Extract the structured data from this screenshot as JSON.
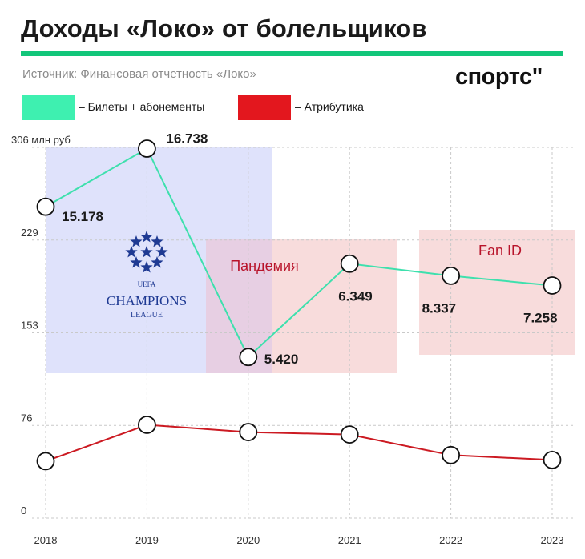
{
  "header": {
    "title": "Доходы «Локо» от болельщиков",
    "source": "Источник: Финансовая отчетность «Локо»",
    "logo": "спортс\""
  },
  "legend": [
    {
      "label": "– Билеты + абонементы",
      "color": "#3ef0b0"
    },
    {
      "label": "– Атрибутика",
      "color": "#e3171e"
    }
  ],
  "colors": {
    "accent_rule": "#12c67a",
    "ticket_line": "#3ee0ad",
    "merch_line": "#cc1a22",
    "ucl_zone": "#dfe2fb",
    "pink_zone": "#f7d6d6",
    "overlap_zone": "#e7cfe3"
  },
  "chart_data": {
    "type": "line",
    "categories": [
      "2018",
      "2019",
      "2020",
      "2021",
      "2022",
      "2023"
    ],
    "y_ticks": [
      "0",
      "76",
      "153",
      "229",
      "306 млн руб"
    ],
    "ylim": [
      0,
      306
    ],
    "series": [
      {
        "name": "Билеты + абонементы",
        "values": [
          257,
          305,
          133,
          210,
          200,
          192
        ],
        "labels": [
          "15.178",
          "16.738",
          "5.420",
          "6.349",
          "8.337",
          "7.258"
        ]
      },
      {
        "name": "Атрибутика",
        "values": [
          47,
          77,
          71,
          69,
          52,
          48
        ]
      }
    ],
    "annotations": {
      "champions_league": {
        "lines": [
          "UEFA",
          "CHAMPIONS",
          "LEAGUE"
        ],
        "years": [
          "2018",
          "2019"
        ]
      },
      "pandemic": {
        "label": "Пандемия",
        "years": [
          "2020",
          "2021"
        ]
      },
      "fan_id": {
        "label": "Fan ID",
        "years": [
          "2022",
          "2023"
        ]
      }
    },
    "grid": true
  }
}
